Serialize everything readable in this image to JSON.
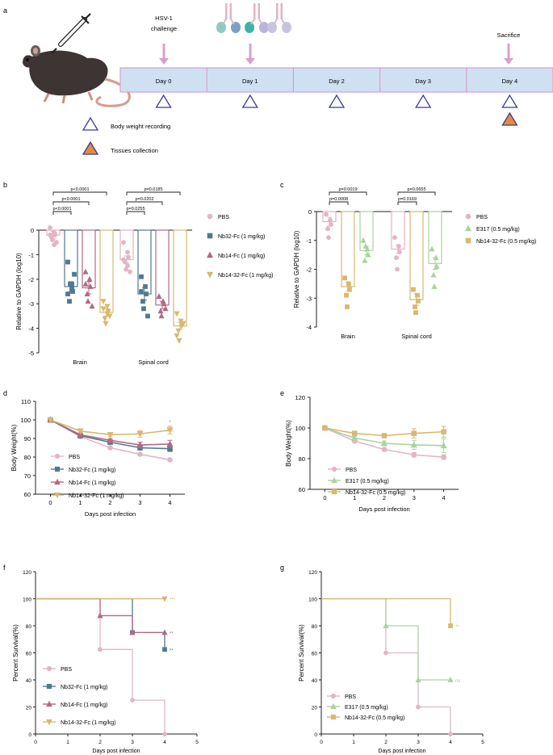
{
  "colors": {
    "pbs": "#e3b5c4",
    "nb32": "#4f7a8c",
    "nb14": "#b06a86",
    "nb1432": "#d8b870",
    "e317": "#a9d3a0",
    "timeline_fill": "#cfe0f2",
    "timeline_border": "#d9a0c8",
    "arrow": "#d9a0c8",
    "triangle_stroke": "#3b3b96",
    "triangle_fill": "#e88a3c"
  },
  "panel_a": {
    "letter": "a",
    "days": [
      "Day 0",
      "Day 1",
      "Day 2",
      "Day 3",
      "Day 4"
    ],
    "challenge_line1": "HSV-1",
    "challenge_line2": "challenge",
    "sacrifice": "Sacrifice",
    "legend_weight": "Body weight recording",
    "legend_tissue": "Tissues collection",
    "mouse_icon": "mouse-with-syringe-icon",
    "antibody_icon": "antibody-icon"
  },
  "panel_b": {
    "letter": "b",
    "chart_data": {
      "type": "bar",
      "ylabel": "Relative to GAPDH (log10)",
      "ylim": [
        -5,
        0
      ],
      "yticks": [
        "0",
        "-1",
        "-2",
        "-3",
        "-4",
        "-5"
      ],
      "categories": [
        "Brain",
        "Spinal cord"
      ],
      "series": [
        {
          "name": "PBS",
          "values": [
            -0.2,
            -1.2
          ],
          "err": [
            0.15,
            0.15
          ],
          "marker": "circle"
        },
        {
          "name": "Nb32-Fc (1 mg/kg)",
          "values": [
            -2.3,
            -2.6
          ],
          "err": [
            0.2,
            0.25
          ],
          "marker": "square"
        },
        {
          "name": "Nb14-Fc (1 mg/kg)",
          "values": [
            -2.35,
            -3.05
          ],
          "err": [
            0.25,
            0.15
          ],
          "marker": "triangle-up"
        },
        {
          "name": "Nb14-32-Fc (1 mg/kg)",
          "values": [
            -3.35,
            -3.9
          ],
          "err": [
            0.15,
            0.15
          ],
          "marker": "triangle-down"
        }
      ],
      "points": [
        [
          [
            0.1,
            -0.1,
            -0.2,
            -0.3,
            -0.4,
            -0.5,
            -0.2,
            -0.6,
            -0.15
          ],
          [
            -1.3,
            -2.2,
            -2.5,
            -2.9,
            -2.2,
            -1.8,
            -2.6,
            -2.4
          ],
          [
            -1.7,
            -2.0,
            -2.3,
            -2.6,
            -2.9,
            -3.1,
            -2.2
          ],
          [
            -2.9,
            -3.1,
            -3.3,
            -3.6,
            -3.8,
            -3.5,
            -3.2,
            -3.4
          ]
        ],
        [
          [
            -0.5,
            -0.9,
            -1.1,
            -1.3,
            -1.6,
            -1.7,
            -1.2,
            -1.45
          ],
          [
            -1.9,
            -2.3,
            -2.6,
            -2.9,
            -3.2,
            -3.5,
            -2.5
          ],
          [
            -2.7,
            -2.9,
            -3.0,
            -3.3,
            -3.5,
            -3.2
          ],
          [
            -3.4,
            -3.7,
            -3.9,
            -4.1,
            -4.5,
            -3.8,
            -4.3
          ]
        ]
      ],
      "comparisons": [
        {
          "group": 0,
          "from": 0,
          "to": 3,
          "label": "p<0.0001"
        },
        {
          "group": 0,
          "from": 0,
          "to": 2,
          "label": "p<0.0001"
        },
        {
          "group": 0,
          "from": 0,
          "to": 1,
          "label": "p<0.0001"
        },
        {
          "group": 1,
          "from": 0,
          "to": 3,
          "label": "p=0.0185"
        },
        {
          "group": 1,
          "from": 0,
          "to": 2,
          "label": "p=0.0202"
        },
        {
          "group": 1,
          "from": 0,
          "to": 1,
          "label": "p=0.0255"
        }
      ]
    }
  },
  "panel_c": {
    "letter": "c",
    "chart_data": {
      "type": "bar",
      "ylabel": "Relative to GAPDH (log10)",
      "ylim": [
        -4,
        0
      ],
      "yticks": [
        "0",
        "-1",
        "-2",
        "-3",
        "-4"
      ],
      "categories": [
        "Brain",
        "Spinal cord"
      ],
      "series": [
        {
          "name": "PBS",
          "values": [
            -0.35,
            -1.3
          ],
          "err": [
            0.15,
            0.15
          ],
          "marker": "circle"
        },
        {
          "name": "Nb14-32-Fc (0.5 mg/kg)",
          "values": [
            -2.6,
            -3.05
          ],
          "err": [
            0.15,
            0.2
          ],
          "marker": "square"
        },
        {
          "name": "E317 (0.5 mg/kg)",
          "values": [
            -1.35,
            -1.8
          ],
          "err": [
            0.15,
            0.2
          ],
          "marker": "triangle-up"
        }
      ],
      "points": [
        [
          [
            -0.1,
            -0.3,
            -0.45,
            -0.6,
            -0.9
          ],
          [
            -2.3,
            -2.5,
            -2.7,
            -2.9,
            -3.3
          ],
          [
            -1.0,
            -1.3,
            -1.5,
            -1.7,
            -1.2
          ]
        ],
        [
          [
            -0.9,
            -1.2,
            -1.4,
            -1.6,
            -2.0
          ],
          [
            -2.7,
            -2.9,
            -3.1,
            -3.3,
            -3.5
          ],
          [
            -1.3,
            -1.6,
            -1.9,
            -2.2,
            -2.6
          ]
        ]
      ],
      "legend": [
        "PBS",
        "E317 (0.5 mg/kg)",
        "Nb14-32-Fc (0.5 mg/kg)"
      ],
      "comparisons": [
        {
          "group": 0,
          "from": 0,
          "to": 2,
          "label": "p=0.0019"
        },
        {
          "group": 0,
          "from": 0,
          "to": 1,
          "label": "p=0.0008"
        },
        {
          "group": 1,
          "from": 0,
          "to": 2,
          "label": "p=0.0655"
        },
        {
          "group": 1,
          "from": 0,
          "to": 1,
          "label": "p=0.0169"
        }
      ]
    }
  },
  "panel_d": {
    "letter": "d",
    "chart_data": {
      "type": "line",
      "xlabel": "Days post infection",
      "ylabel": "Body Weight(%)",
      "x": [
        0,
        1,
        2,
        3,
        4
      ],
      "xlim": [
        -0.5,
        4.5
      ],
      "ylim": [
        60,
        110
      ],
      "yticks": [
        60,
        70,
        80,
        90,
        100,
        110
      ],
      "series": [
        {
          "name": "PBS",
          "values": [
            100,
            91,
            85,
            81.5,
            78.5
          ],
          "err": [
            0,
            0.5,
            0.6,
            0.6,
            0.6
          ],
          "marker": "circle"
        },
        {
          "name": "Nb32-Fc (1 mg/kg)",
          "values": [
            100,
            91.5,
            88,
            85,
            84.5
          ],
          "err": [
            0,
            0.5,
            0.8,
            1.2,
            1.5
          ],
          "marker": "square"
        },
        {
          "name": "Nb14-Fc (1 mg/kg)",
          "values": [
            100,
            92,
            89,
            86.5,
            87
          ],
          "err": [
            0,
            0.6,
            0.9,
            1.5,
            2.0
          ],
          "marker": "triangle-up"
        },
        {
          "name": "Nb14-32-Fc (1 mg/kg)",
          "values": [
            100,
            94,
            92,
            92.5,
            94.5
          ],
          "err": [
            0,
            0.8,
            1.0,
            1.8,
            2.0
          ],
          "marker": "triangle-down"
        }
      ],
      "annotations": [
        "*",
        "**",
        "****"
      ]
    }
  },
  "panel_e": {
    "letter": "e",
    "chart_data": {
      "type": "line",
      "xlabel": "Days post infection",
      "ylabel": "Body Weight(%)",
      "x": [
        0,
        1,
        2,
        3,
        4
      ],
      "xlim": [
        -0.5,
        4.5
      ],
      "ylim": [
        60,
        120
      ],
      "yticks": [
        60,
        80,
        100,
        120
      ],
      "series": [
        {
          "name": "PBS",
          "values": [
            100,
            91.5,
            86,
            82.5,
            81
          ],
          "err": [
            0,
            1.0,
            1.0,
            1.5,
            1.5
          ],
          "marker": "circle"
        },
        {
          "name": "E317 (0.5 mg/kg)",
          "values": [
            100,
            93.5,
            90,
            89,
            88.5
          ],
          "err": [
            0,
            1.2,
            1.5,
            3.0,
            4.5
          ],
          "marker": "triangle-up"
        },
        {
          "name": "Nb14-32-Fc (0.5 mg/kg)",
          "values": [
            100,
            96.5,
            95,
            96.5,
            97.5
          ],
          "err": [
            0,
            0.8,
            1.2,
            3.0,
            3.5
          ],
          "marker": "square"
        }
      ],
      "annotations": [
        "*",
        "ns"
      ]
    }
  },
  "panel_f": {
    "letter": "f",
    "chart_data": {
      "type": "line",
      "step": true,
      "xlabel": "Days post infection",
      "ylabel": "Percent Survival(%)",
      "xlim": [
        0,
        5
      ],
      "ylim": [
        0,
        120
      ],
      "xticks": [
        0,
        1,
        2,
        3,
        4,
        5
      ],
      "yticks": [
        0,
        20,
        40,
        60,
        80,
        100,
        120
      ],
      "series": [
        {
          "name": "PBS",
          "steps": [
            [
              0,
              100
            ],
            [
              2,
              62.5
            ],
            [
              3,
              25
            ],
            [
              4,
              0
            ]
          ],
          "marker": "circle",
          "end_label": ""
        },
        {
          "name": "Nb32-Fc (1 mg/kg)",
          "steps": [
            [
              0,
              100
            ],
            [
              3,
              75
            ],
            [
              4,
              62.5
            ]
          ],
          "marker": "square",
          "end_label": "**"
        },
        {
          "name": "Nb14-Fc (1 mg/kg)",
          "steps": [
            [
              0,
              100
            ],
            [
              2,
              87.5
            ],
            [
              3,
              75
            ],
            [
              4,
              75
            ]
          ],
          "marker": "triangle-up",
          "end_label": "**"
        },
        {
          "name": "Nb14-32-Fc (1 mg/kg)",
          "steps": [
            [
              0,
              100
            ],
            [
              4,
              100
            ]
          ],
          "marker": "triangle-down",
          "end_label": "***"
        }
      ]
    }
  },
  "panel_g": {
    "letter": "g",
    "chart_data": {
      "type": "line",
      "step": true,
      "xlabel": "Days post infection",
      "ylabel": "Percent Survival(%)",
      "xlim": [
        0,
        5
      ],
      "ylim": [
        0,
        120
      ],
      "xticks": [
        0,
        1,
        2,
        3,
        4,
        5
      ],
      "yticks": [
        0,
        20,
        40,
        60,
        80,
        100,
        120
      ],
      "series": [
        {
          "name": "PBS",
          "steps": [
            [
              0,
              100
            ],
            [
              2,
              60
            ],
            [
              3,
              20
            ],
            [
              4,
              0
            ]
          ],
          "marker": "circle",
          "end_label": ""
        },
        {
          "name": "E317 (0.5 mg/kg)",
          "steps": [
            [
              0,
              100
            ],
            [
              2,
              80
            ],
            [
              3,
              40
            ],
            [
              4,
              40
            ]
          ],
          "marker": "triangle-up",
          "end_label": "ns"
        },
        {
          "name": "Nb14-32-Fc (0.5 mg/kg)",
          "steps": [
            [
              0,
              100
            ],
            [
              4,
              80
            ]
          ],
          "marker": "square",
          "end_label": "**"
        }
      ]
    }
  }
}
